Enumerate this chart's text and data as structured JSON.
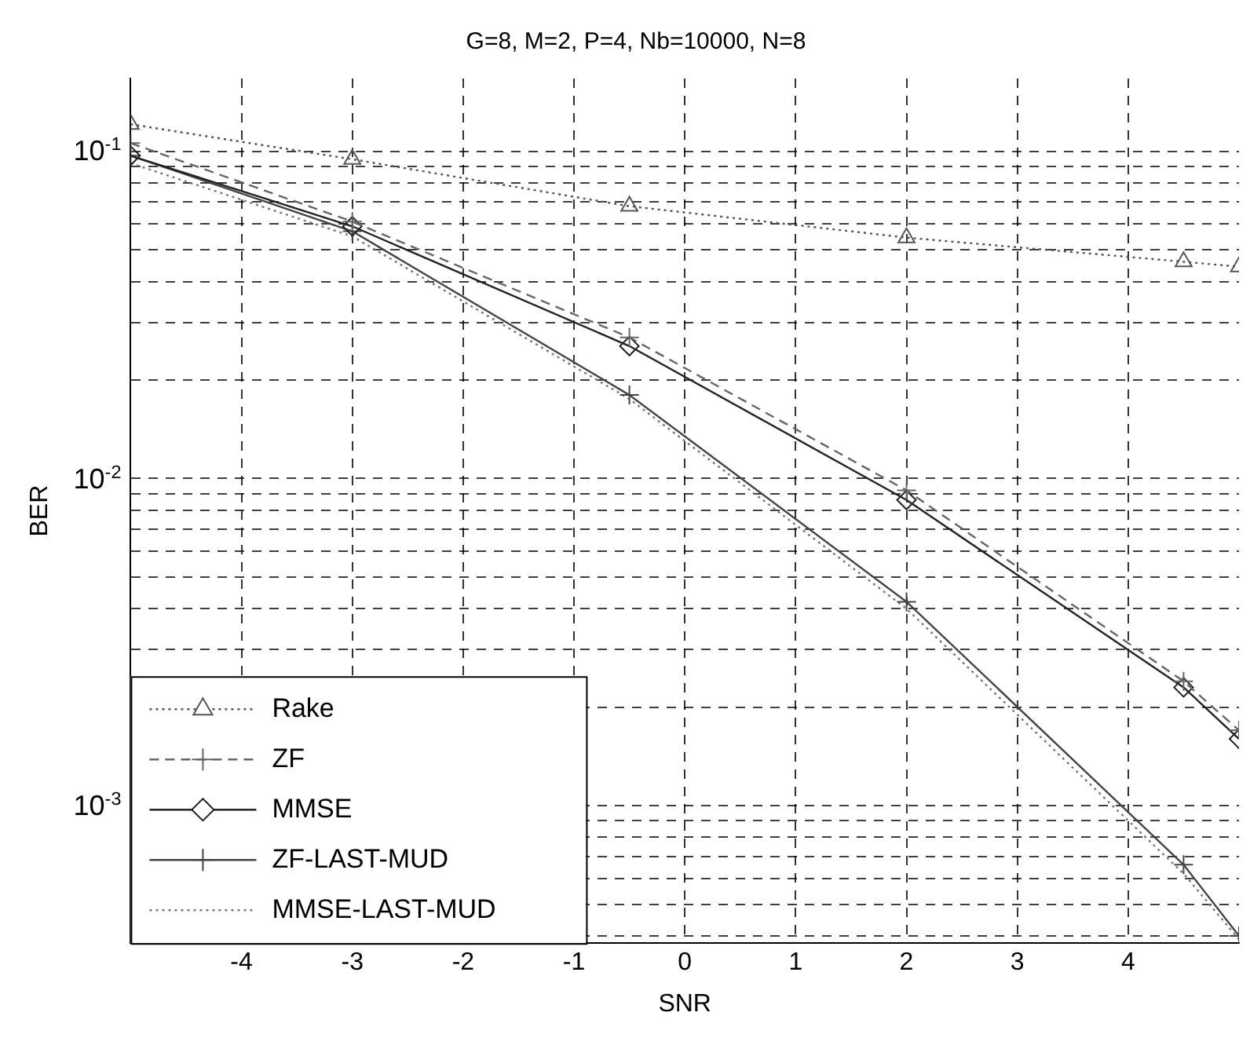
{
  "chart_data": {
    "type": "line",
    "title": "G=8, M=2, P=4, Nb=10000, N=8",
    "xlabel": "SNR",
    "ylabel": "BER",
    "log": "y",
    "grid": true,
    "legend": "bottom left",
    "xlim": [
      -5,
      5
    ],
    "xticks": [
      -4,
      -3,
      -2,
      -1,
      0,
      1,
      2,
      3,
      4
    ],
    "ylim": [
      0.00038,
      0.167
    ],
    "yticks": [
      {
        "value": 0.0004,
        "label": null
      },
      {
        "value": 0.0005,
        "label": null
      },
      {
        "value": 0.0006,
        "label": null
      },
      {
        "value": 0.0007,
        "label": null
      },
      {
        "value": 0.0008,
        "label": null
      },
      {
        "value": 0.0009,
        "label": null
      },
      {
        "value": 0.001,
        "label": "10$^{-3}$"
      },
      {
        "value": 0.002,
        "label": null
      },
      {
        "value": 0.003,
        "label": null
      },
      {
        "value": 0.004,
        "label": null
      },
      {
        "value": 0.005,
        "label": null
      },
      {
        "value": 0.006,
        "label": null
      },
      {
        "value": 0.007,
        "label": null
      },
      {
        "value": 0.008,
        "label": null
      },
      {
        "value": 0.009,
        "label": null
      },
      {
        "value": 0.01,
        "label": "10$^{-2}$"
      },
      {
        "value": 0.02,
        "label": null
      },
      {
        "value": 0.03,
        "label": null
      },
      {
        "value": 0.04,
        "label": null
      },
      {
        "value": 0.05,
        "label": null
      },
      {
        "value": 0.06,
        "label": null
      },
      {
        "value": 0.07,
        "label": null
      },
      {
        "value": 0.08,
        "label": null
      },
      {
        "value": 0.09,
        "label": null
      },
      {
        "value": 0.1,
        "label": "10$^{-1}$"
      }
    ],
    "x": [
      -5,
      -3,
      -0.5,
      2,
      4.5,
      5
    ],
    "series": [
      {
        "name": "Rake",
        "color": "#555555",
        "values": [
          0.121,
          0.0946,
          0.068,
          0.0545,
          0.046,
          0.0444
        ],
        "marker": "triangle",
        "line_style": "dotted"
      },
      {
        "name": "ZF",
        "color": "#666666",
        "values": [
          0.106,
          0.061,
          0.027,
          0.0092,
          0.0024,
          0.0017
        ],
        "marker": "cross",
        "line_style": "dashed"
      },
      {
        "name": "MMSE",
        "color": "#222222",
        "values": [
          0.097,
          0.059,
          0.0254,
          0.0086,
          0.0023,
          0.0016
        ],
        "marker": "diamond",
        "line_style": "solid"
      },
      {
        "name": "ZF-LAST-MUD",
        "color": "#444444",
        "values": [
          0.097,
          0.057,
          0.018,
          0.0042,
          0.00066,
          0.0004
        ],
        "marker": "cross",
        "line_style": "solid"
      },
      {
        "name": "MMSE-LAST-MUD",
        "color": "#777777",
        "values": [
          0.092,
          0.055,
          0.0175,
          0.004,
          0.00062,
          0.00039
        ],
        "marker": "none",
        "line_style": "dotted"
      }
    ]
  }
}
